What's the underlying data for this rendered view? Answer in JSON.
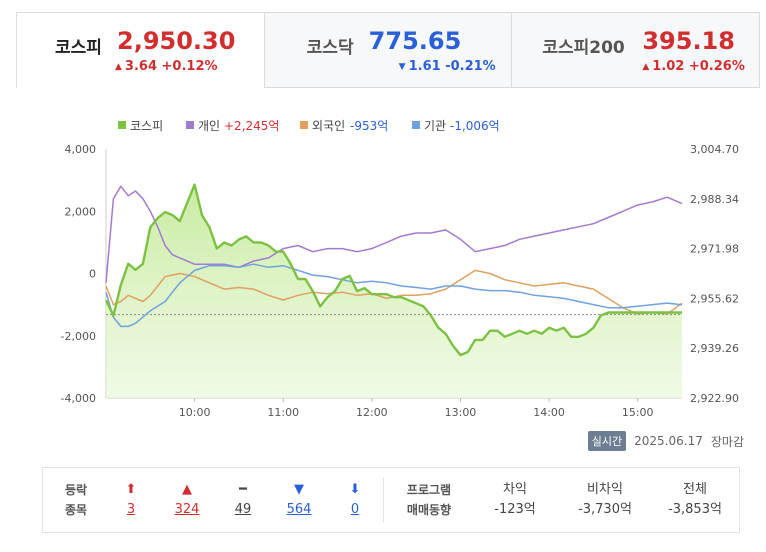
{
  "tabs": [
    {
      "name": "코스피",
      "price": "2,950.30",
      "arrow": "▲",
      "change": "3.64 +0.12%",
      "dir": "up",
      "active": true
    },
    {
      "name": "코스닥",
      "price": "775.65",
      "arrow": "▼",
      "change": "1.61 -0.21%",
      "dir": "down",
      "active": false
    },
    {
      "name": "코스피200",
      "price": "395.18",
      "arrow": "▲",
      "change": "1.02 +0.26%",
      "dir": "up",
      "active": false
    }
  ],
  "legend": [
    {
      "label": "코스피",
      "value": "",
      "color": "#7cc142"
    },
    {
      "label": "개인",
      "value": "+2,245억",
      "value_color": "#d12f2f",
      "color": "#a07cd0"
    },
    {
      "label": "외국인",
      "value": "-953억",
      "value_color": "#2b5fd9",
      "color": "#e0a060"
    },
    {
      "label": "기관",
      "value": "-1,006억",
      "value_color": "#2b5fd9",
      "color": "#6fa2e0"
    }
  ],
  "status": {
    "badge": "실시간",
    "date": "2025.06.17",
    "state": "장마감"
  },
  "stats": {
    "label_line1": "등락",
    "label_line2": "종목",
    "counts": [
      {
        "symbol": "⬆",
        "value": "3",
        "cls": "up2"
      },
      {
        "symbol": "▲",
        "value": "324",
        "cls": "up2"
      },
      {
        "symbol": "━",
        "value": "49",
        "cls": "flat"
      },
      {
        "symbol": "▼",
        "value": "564",
        "cls": "dn2"
      },
      {
        "symbol": "⬇",
        "value": "0",
        "cls": "dn2"
      }
    ],
    "program_label1": "프로그램",
    "program_label2": "매매동향",
    "program": [
      {
        "head": "차익",
        "value": "-123억"
      },
      {
        "head": "비차익",
        "value": "-3,730억"
      },
      {
        "head": "전체",
        "value": "-3,853억"
      }
    ]
  },
  "chart_data": {
    "type": "line",
    "x_ticks": [
      "10:00",
      "11:00",
      "12:00",
      "13:00",
      "14:00",
      "15:00"
    ],
    "x_range": [
      "09:00",
      "15:30"
    ],
    "left_axis": {
      "ticks": [
        "4,000",
        "2,000",
        "0",
        "-2,000",
        "-4,000"
      ],
      "range": [
        -4000,
        4000
      ]
    },
    "right_axis": {
      "ticks": [
        "3,004.70",
        "2,988.34",
        "2,971.98",
        "2,955.62",
        "2,939.26",
        "2,922.90"
      ],
      "range": [
        2922.9,
        3004.7
      ]
    },
    "reference_line": 2950.3,
    "series": [
      {
        "name": "코스피",
        "axis": "right",
        "color": "#7cc142",
        "fill": true,
        "t": [
          0,
          5,
          10,
          15,
          20,
          25,
          30,
          35,
          40,
          45,
          50,
          55,
          60,
          65,
          70,
          75,
          80,
          85,
          90,
          95,
          100,
          105,
          110,
          115,
          120,
          125,
          130,
          135,
          140,
          145,
          150,
          155,
          160,
          165,
          170,
          175,
          180,
          185,
          190,
          195,
          200,
          205,
          210,
          215,
          220,
          225,
          230,
          235,
          240,
          245,
          250,
          255,
          260,
          265,
          270,
          275,
          280,
          285,
          290,
          295,
          300,
          305,
          310,
          315,
          320,
          325,
          330,
          335,
          340,
          345,
          350,
          355,
          360,
          365,
          370,
          375,
          380,
          385,
          390
        ],
        "v": [
          2955,
          2950,
          2960,
          2967,
          2965,
          2967,
          2979,
          2982,
          2984,
          2983,
          2981,
          2987,
          2993,
          2983,
          2979,
          2972,
          2974,
          2973,
          2975,
          2976,
          2974,
          2974,
          2973,
          2971,
          2971,
          2967,
          2962,
          2962,
          2958,
          2953,
          2956,
          2958,
          2962,
          2963,
          2958,
          2959,
          2957,
          2957,
          2957,
          2956,
          2956,
          2955,
          2954,
          2953,
          2950,
          2946,
          2944,
          2940,
          2937,
          2938,
          2942,
          2942,
          2945,
          2945,
          2943,
          2944,
          2945,
          2944,
          2945,
          2944,
          2946,
          2945,
          2946,
          2943,
          2943,
          2944,
          2946,
          2950,
          2951,
          2951,
          2951,
          2951,
          2951,
          2951,
          2951,
          2951,
          2951,
          2951,
          2951
        ]
      },
      {
        "name": "개인",
        "axis": "left",
        "color": "#a07cd0",
        "t": [
          0,
          5,
          10,
          15,
          20,
          25,
          30,
          35,
          40,
          45,
          50,
          55,
          60,
          70,
          80,
          90,
          100,
          110,
          120,
          130,
          140,
          150,
          160,
          170,
          180,
          190,
          200,
          210,
          220,
          230,
          240,
          250,
          260,
          270,
          280,
          290,
          300,
          310,
          320,
          330,
          340,
          350,
          360,
          370,
          380,
          390
        ],
        "v": [
          -300,
          2400,
          2800,
          2500,
          2650,
          2400,
          2000,
          1500,
          900,
          600,
          500,
          400,
          300,
          300,
          300,
          200,
          400,
          500,
          800,
          900,
          700,
          800,
          800,
          700,
          800,
          1000,
          1200,
          1300,
          1300,
          1400,
          1100,
          700,
          800,
          900,
          1100,
          1200,
          1300,
          1400,
          1500,
          1600,
          1800,
          2000,
          2200,
          2300,
          2450,
          2245
        ]
      },
      {
        "name": "외국인",
        "axis": "left",
        "color": "#e0a060",
        "t": [
          0,
          5,
          10,
          15,
          20,
          25,
          30,
          40,
          50,
          60,
          70,
          80,
          90,
          100,
          110,
          120,
          130,
          140,
          150,
          160,
          170,
          180,
          190,
          200,
          210,
          220,
          230,
          240,
          250,
          260,
          270,
          280,
          290,
          300,
          310,
          320,
          330,
          340,
          350,
          360,
          370,
          380,
          390
        ],
        "v": [
          -400,
          -1000,
          -900,
          -700,
          -800,
          -900,
          -700,
          -100,
          0,
          -100,
          -300,
          -500,
          -450,
          -500,
          -700,
          -850,
          -700,
          -600,
          -650,
          -600,
          -700,
          -650,
          -800,
          -700,
          -700,
          -650,
          -500,
          -200,
          100,
          0,
          -200,
          -300,
          -400,
          -350,
          -300,
          -400,
          -500,
          -800,
          -1100,
          -1300,
          -1250,
          -1300,
          -953
        ]
      },
      {
        "name": "기관",
        "axis": "left",
        "color": "#6fa2e0",
        "t": [
          0,
          5,
          10,
          15,
          20,
          25,
          30,
          40,
          50,
          60,
          70,
          80,
          90,
          100,
          110,
          120,
          130,
          140,
          150,
          160,
          170,
          180,
          190,
          200,
          210,
          220,
          230,
          240,
          250,
          260,
          270,
          280,
          290,
          300,
          310,
          320,
          330,
          340,
          350,
          360,
          370,
          380,
          390
        ],
        "v": [
          -600,
          -1400,
          -1700,
          -1700,
          -1600,
          -1400,
          -1200,
          -900,
          -300,
          100,
          250,
          250,
          200,
          300,
          200,
          250,
          100,
          -50,
          -100,
          -200,
          -300,
          -250,
          -300,
          -400,
          -450,
          -500,
          -400,
          -400,
          -500,
          -550,
          -550,
          -600,
          -700,
          -750,
          -800,
          -900,
          -1000,
          -1100,
          -1100,
          -1050,
          -1000,
          -950,
          -1006
        ]
      }
    ]
  }
}
